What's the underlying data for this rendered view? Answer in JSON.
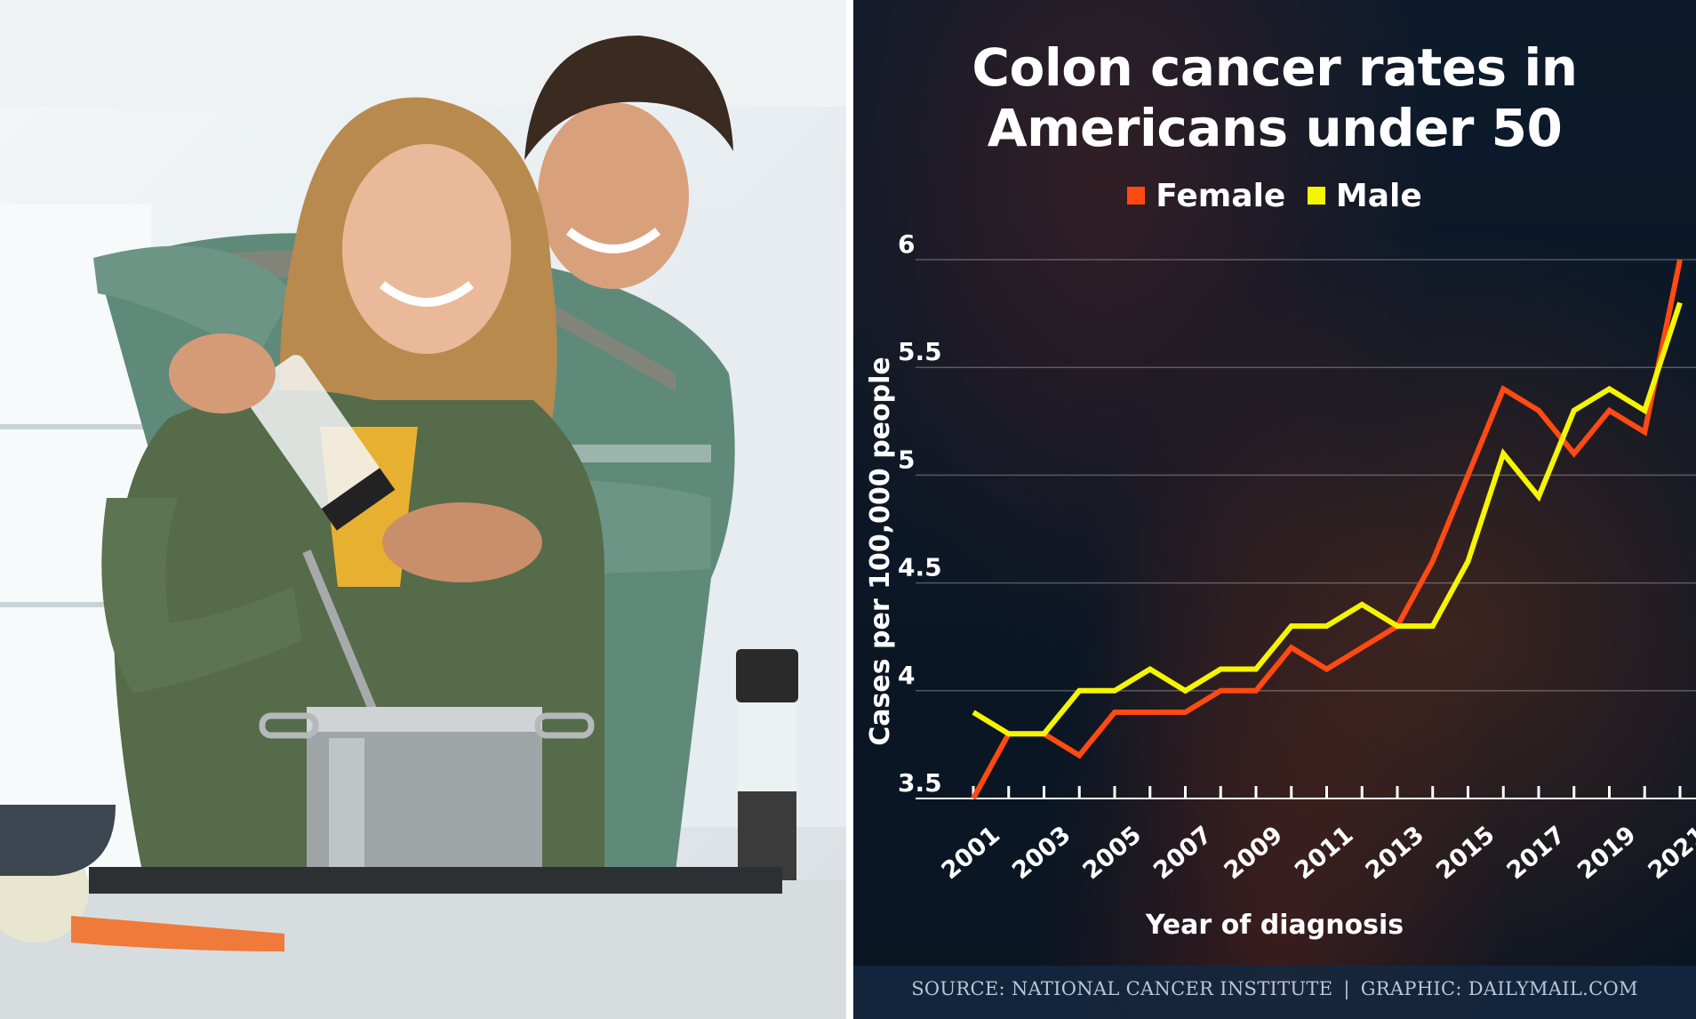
{
  "chart_data": {
    "type": "line",
    "title_lines": [
      "Colon cancer rates in",
      "Americans under 50"
    ],
    "xlabel": "Year of diagnosis",
    "ylabel": "Cases per 100,000 people",
    "ylim": [
      3.5,
      6
    ],
    "yticks": [
      "3.5",
      "4",
      "4.5",
      "5",
      "5.5",
      "6"
    ],
    "xlim": [
      2001,
      2021
    ],
    "xtick_labels": [
      "2001",
      "2003",
      "2005",
      "2007",
      "2009",
      "2011",
      "2013",
      "2015",
      "2017",
      "2019",
      "2021"
    ],
    "x": [
      2001,
      2002,
      2003,
      2004,
      2005,
      2006,
      2007,
      2008,
      2009,
      2010,
      2011,
      2012,
      2013,
      2014,
      2015,
      2016,
      2017,
      2018,
      2019,
      2020,
      2021
    ],
    "grid": true,
    "legend_position": "top",
    "series": [
      {
        "name": "Female",
        "color": "#ff4a12",
        "values": [
          3.5,
          3.8,
          3.8,
          3.7,
          3.9,
          3.9,
          3.9,
          4.0,
          4.0,
          4.2,
          4.1,
          4.2,
          4.3,
          4.6,
          5.0,
          5.4,
          5.3,
          5.1,
          5.3,
          5.2,
          6.0
        ]
      },
      {
        "name": "Male",
        "color": "#f5f500",
        "values": [
          3.9,
          3.8,
          3.8,
          4.0,
          4.0,
          4.1,
          4.0,
          4.1,
          4.1,
          4.3,
          4.3,
          4.4,
          4.3,
          4.3,
          4.6,
          5.1,
          4.9,
          5.3,
          5.4,
          5.3,
          5.8
        ]
      }
    ]
  },
  "legend": {
    "female_label": "Female",
    "male_label": "Male"
  },
  "footer": {
    "source": "SOURCE: NATIONAL CANCER INSTITUTE",
    "separator": "|",
    "graphic": "GRAPHIC: DAILYMAIL.COM"
  },
  "photo": {
    "description_icon": "couple-cooking-photo"
  },
  "colors": {
    "background": "#0b1726",
    "female": "#ff4a12",
    "male": "#f5f500",
    "text": "#ffffff",
    "source_text": "#b8c6d6"
  }
}
